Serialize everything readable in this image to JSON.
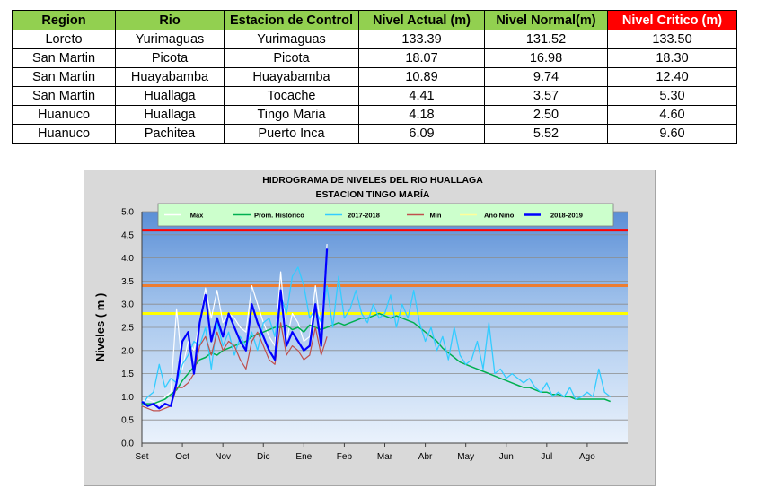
{
  "table": {
    "headers": [
      "Region",
      "Rio",
      "Estacion de Control",
      "Nivel Actual (m)",
      "Nivel Normal(m)",
      "Nivel Critico (m)"
    ],
    "rows": [
      [
        "Loreto",
        "Yurimaguas",
        "Yurimaguas",
        "133.39",
        "131.52",
        "133.50"
      ],
      [
        "San Martin",
        "Picota",
        "Picota",
        "18.07",
        "16.98",
        "18.30"
      ],
      [
        "San Martin",
        "Huayabamba",
        "Huayabamba",
        "10.89",
        "9.74",
        "12.40"
      ],
      [
        "San Martin",
        "Huallaga",
        "Tocache",
        "4.41",
        "3.57",
        "5.30"
      ],
      [
        "Huanuco",
        "Huallaga",
        "Tingo Maria",
        "4.18",
        "2.50",
        "4.60"
      ],
      [
        "Huanuco",
        "Pachitea",
        "Puerto Inca",
        "6.09",
        "5.52",
        "9.60"
      ]
    ],
    "colors": {
      "header_bg": "#92d050",
      "critical_header_bg": "#ff0000",
      "critical_header_text": "#ffffff"
    }
  },
  "chart_data": {
    "type": "line",
    "title": "HIDROGRAMA DE NIVELES DEL RIO HUALLAGA",
    "subtitle": "ESTACION TINGO MARÍA",
    "ylabel": "Niveles ( m )",
    "xlabel": "",
    "ylim": [
      0,
      5.0
    ],
    "yticks": [
      "0.0",
      "0.5",
      "1.0",
      "1.5",
      "2.0",
      "2.5",
      "3.0",
      "3.5",
      "4.0",
      "4.5",
      "5.0"
    ],
    "x_tick_labels": [
      "Set",
      "Oct",
      "Nov",
      "Dic",
      "Ene",
      "Feb",
      "Mar",
      "Abr",
      "May",
      "Jun",
      "Jul",
      "Ago"
    ],
    "legend_position": "top",
    "grid": true,
    "reference_lines": [
      {
        "level": 4.6,
        "color": "#ff0000"
      },
      {
        "level": 3.4,
        "color": "#ed7d31"
      },
      {
        "level": 2.8,
        "color": "#ffff00"
      }
    ],
    "series": [
      {
        "name": "Max",
        "color": "#ffffff",
        "values": [
          0.9,
          0.95,
          0.9,
          0.85,
          1.0,
          1.1,
          2.9,
          1.6,
          2.2,
          2.0,
          2.6,
          3.35,
          2.7,
          3.3,
          2.6,
          2.8,
          2.7,
          2.5,
          2.4,
          3.4,
          3.0,
          2.6,
          2.3,
          2.1,
          3.7,
          2.2,
          2.8,
          2.6,
          2.2,
          2.3,
          3.4,
          2.4,
          4.3
        ]
      },
      {
        "name": "Prom. Histórico",
        "color": "#00b050",
        "values": [
          0.85,
          0.85,
          0.85,
          0.9,
          0.95,
          1.05,
          1.15,
          1.35,
          1.5,
          1.65,
          1.8,
          1.85,
          1.95,
          1.9,
          2.0,
          2.05,
          2.1,
          2.15,
          2.2,
          2.3,
          2.35,
          2.4,
          2.45,
          2.5,
          2.5,
          2.55,
          2.45,
          2.5,
          2.4,
          2.55,
          2.5,
          2.45,
          2.5,
          2.55,
          2.6,
          2.55,
          2.6,
          2.65,
          2.7,
          2.7,
          2.75,
          2.8,
          2.75,
          2.7,
          2.75,
          2.7,
          2.65,
          2.6,
          2.5,
          2.4,
          2.3,
          2.2,
          2.05,
          1.95,
          1.85,
          1.75,
          1.7,
          1.65,
          1.6,
          1.55,
          1.5,
          1.45,
          1.4,
          1.35,
          1.3,
          1.25,
          1.2,
          1.2,
          1.15,
          1.1,
          1.1,
          1.05,
          1.05,
          1.0,
          1.0,
          0.95,
          0.95,
          0.95,
          0.95,
          0.95,
          0.95,
          0.9
        ]
      },
      {
        "name": "2017-2018",
        "color": "#33ccff",
        "values": [
          0.8,
          1.0,
          1.1,
          1.7,
          1.2,
          1.4,
          1.3,
          1.7,
          1.9,
          2.2,
          2.1,
          2.5,
          1.6,
          2.6,
          2.1,
          2.4,
          1.9,
          2.3,
          2.1,
          2.4,
          2.0,
          2.6,
          2.7,
          2.3,
          3.2,
          2.8,
          3.6,
          3.8,
          3.4,
          2.7,
          2.9,
          2.6,
          3.4,
          2.5,
          3.6,
          2.7,
          2.9,
          3.3,
          2.8,
          2.6,
          3.0,
          2.7,
          2.8,
          3.2,
          2.5,
          3.0,
          2.7,
          3.3,
          2.6,
          2.2,
          2.5,
          2.0,
          2.3,
          1.8,
          2.5,
          1.9,
          1.7,
          1.8,
          2.2,
          1.6,
          2.6,
          1.5,
          1.6,
          1.4,
          1.5,
          1.4,
          1.3,
          1.4,
          1.2,
          1.1,
          1.3,
          1.0,
          1.1,
          1.0,
          1.2,
          0.95,
          1.0,
          1.1,
          1.0,
          1.6,
          1.1,
          1.0
        ]
      },
      {
        "name": "Min",
        "color": "#c0504d",
        "values": [
          0.8,
          0.75,
          0.7,
          0.7,
          0.75,
          0.8,
          1.2,
          1.2,
          1.3,
          1.5,
          2.1,
          2.3,
          1.9,
          2.4,
          2.0,
          2.2,
          2.1,
          1.8,
          1.6,
          2.2,
          2.4,
          2.1,
          1.8,
          1.7,
          2.6,
          1.9,
          2.1,
          2.0,
          1.8,
          1.9,
          2.5,
          1.9,
          2.3
        ]
      },
      {
        "name": "Año Niño",
        "color": "#ffff99",
        "values": []
      },
      {
        "name": "2018-2019",
        "color": "#0000ff",
        "values": [
          0.9,
          0.8,
          0.85,
          0.75,
          0.85,
          0.8,
          1.3,
          2.2,
          2.4,
          1.5,
          2.6,
          3.2,
          2.2,
          2.7,
          2.3,
          2.8,
          2.5,
          2.2,
          2.0,
          3.0,
          2.6,
          2.3,
          2.0,
          1.8,
          3.3,
          2.1,
          2.4,
          2.2,
          2.0,
          2.1,
          3.0,
          2.1,
          4.2
        ]
      }
    ]
  }
}
